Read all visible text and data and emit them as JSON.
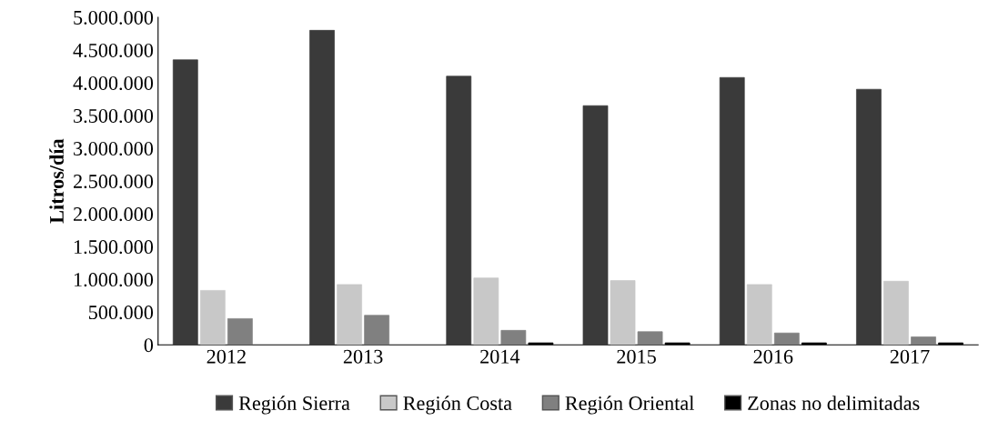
{
  "chart_data": {
    "type": "bar",
    "ylabel": "Litros/día",
    "categories": [
      "2012",
      "2013",
      "2014",
      "2015",
      "2016",
      "2017"
    ],
    "series": [
      {
        "name": "Región Sierra",
        "color": "#3a3a3a",
        "values": [
          4350000,
          4800000,
          4100000,
          3650000,
          4080000,
          3900000
        ]
      },
      {
        "name": "Región Costa",
        "color": "#c8c8c8",
        "values": [
          830000,
          920000,
          1020000,
          980000,
          920000,
          970000
        ]
      },
      {
        "name": "Región Oriental",
        "color": "#808080",
        "values": [
          400000,
          450000,
          220000,
          200000,
          180000,
          120000
        ]
      },
      {
        "name": "Zonas no delimitadas",
        "color": "#000000",
        "values": [
          null,
          null,
          30000,
          30000,
          30000,
          30000
        ]
      }
    ],
    "ylim": [
      0,
      5000000
    ],
    "yticks": [
      0,
      {
        "value": 500000,
        "label": "500.000"
      },
      {
        "value": 1000000,
        "label": "1.000.000"
      },
      {
        "value": 1500000,
        "label": "1.500.000"
      },
      {
        "value": 2000000,
        "label": "2.000.000"
      },
      {
        "value": 2500000,
        "label": "2.500.000"
      },
      {
        "value": 3000000,
        "label": "3.000.000"
      },
      {
        "value": 3500000,
        "label": "3.500.000"
      },
      {
        "value": 4000000,
        "label": "4.000.000"
      },
      {
        "value": 4500000,
        "label": "4.500.000"
      },
      {
        "value": 5000000,
        "label": "5.000.000"
      }
    ],
    "grid": false,
    "legend": "bottom"
  }
}
